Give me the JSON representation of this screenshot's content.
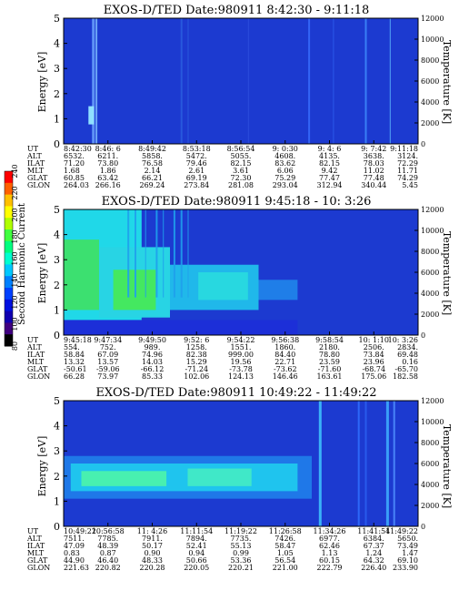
{
  "colorbar": {
    "label": "Second Harmonic Current",
    "ticks": [
      "240",
      "220",
      "200",
      "180",
      "160",
      "140",
      "120",
      "100",
      "80"
    ]
  },
  "row_labels": [
    "UT",
    "ALT",
    "ILAT",
    "MLT",
    "GLAT",
    "GLON"
  ],
  "chart_data": [
    {
      "type": "heatmap",
      "title": "EXOS-D/TED   Date:980911  8:42:30 - 9:11:18",
      "ylabel": "Energy [eV]",
      "y2label": "Temperature [K]",
      "ylim": [
        0,
        5
      ],
      "y2lim": [
        0,
        12000
      ],
      "yticks": [
        "0",
        "1",
        "2",
        "3",
        "4",
        "5"
      ],
      "y2ticks": [
        "0",
        "2000",
        "4000",
        "6000",
        "8000",
        "10000",
        "12000"
      ],
      "ut": [
        "8:42:30",
        "8:46: 6",
        "8:49:42",
        "8:53:18",
        "8:56:54",
        "9: 0:30",
        "9: 4: 6",
        "9: 7:42",
        "9:11:18"
      ],
      "alt": [
        "6532.",
        "6211.",
        "5858.",
        "5472.",
        "5055.",
        "4608.",
        "4135.",
        "3638.",
        "3124."
      ],
      "ilat": [
        "71.20",
        "73.80",
        "76.58",
        "79.46",
        "82.15",
        "83.62",
        "82.15",
        "78.03",
        "72.29"
      ],
      "mlt": [
        "1.68",
        "1.86",
        "2.14",
        "2.61",
        "3.61",
        "6.06",
        "9.42",
        "11.02",
        "11.71"
      ],
      "glat": [
        "60.85",
        "63.42",
        "66.21",
        "69.19",
        "72.30",
        "75.29",
        "77.47",
        "77.48",
        "74.29"
      ],
      "glon": [
        "264.03",
        "266.16",
        "269.24",
        "273.84",
        "281.08",
        "293.04",
        "312.94",
        "340.44",
        "5.45"
      ]
    },
    {
      "type": "heatmap",
      "title": "EXOS-D/TED   Date:980911  9:45:18 - 10: 3:26",
      "ylabel": "Energy [eV]",
      "y2label": "Temperature [K]",
      "ylim": [
        0,
        5
      ],
      "y2lim": [
        0,
        12000
      ],
      "yticks": [
        "0",
        "1",
        "2",
        "3",
        "4",
        "5"
      ],
      "y2ticks": [
        "0",
        "2000",
        "4000",
        "6000",
        "8000",
        "10000",
        "12000"
      ],
      "ut": [
        "9:45:18",
        "9:47:34",
        "9:49:50",
        "9:52: 6",
        "9:54:22",
        "9:56:38",
        "9:58:54",
        "10: 1:10",
        "10: 3:26"
      ],
      "alt": [
        "554.",
        "752.",
        "989.",
        "1258.",
        "1551.",
        "1860.",
        "2180.",
        "2506.",
        "2834."
      ],
      "ilat": [
        "58.84",
        "67.09",
        "74.96",
        "82.38",
        "999.00",
        "84.40",
        "78.80",
        "73.84",
        "69.48"
      ],
      "mlt": [
        "13.32",
        "13.57",
        "14.03",
        "15.29",
        "19.56",
        "22.71",
        "23.59",
        "23.96",
        "0.16"
      ],
      "glat": [
        "-50.61",
        "-59.06",
        "-66.12",
        "-71.24",
        "-73.78",
        "-73.62",
        "-71.60",
        "-68.74",
        "-65.70"
      ],
      "glon": [
        "66.28",
        "73.97",
        "85.33",
        "102.06",
        "124.13",
        "146.46",
        "163.61",
        "175.06",
        "182.58"
      ]
    },
    {
      "type": "heatmap",
      "title": "EXOS-D/TED   Date:980911  10:49:22 - 11:49:22",
      "ylabel": "Energy [eV]",
      "y2label": "Temperature [K]",
      "ylim": [
        0,
        5
      ],
      "y2lim": [
        0,
        12000
      ],
      "yticks": [
        "0",
        "1",
        "2",
        "3",
        "4",
        "5"
      ],
      "y2ticks": [
        "0",
        "2000",
        "4000",
        "6000",
        "8000",
        "10000",
        "12000"
      ],
      "ut": [
        "10:49:22",
        "10:56:58",
        "11: 4:26",
        "11:11:54",
        "11:19:22",
        "11:26:58",
        "11:34:26",
        "11:41:54",
        "11:49:22"
      ],
      "alt": [
        "7511.",
        "7785.",
        "7911.",
        "7894.",
        "7735.",
        "7426.",
        "6977.",
        "6384.",
        "5650."
      ],
      "ilat": [
        "47.09",
        "48.39",
        "50.17",
        "52.41",
        "55.13",
        "58.47",
        "62.46",
        "67.37",
        "73.49"
      ],
      "mlt": [
        "0.83",
        "0.87",
        "0.90",
        "0.94",
        "0.99",
        "1.05",
        "1.13",
        "1.24",
        "1.47"
      ],
      "glat": [
        "44.90",
        "46.40",
        "48.33",
        "50.66",
        "53.36",
        "56.54",
        "60.15",
        "64.32",
        "69.10"
      ],
      "glon": [
        "221.63",
        "220.82",
        "220.28",
        "220.05",
        "220.21",
        "221.00",
        "222.79",
        "226.40",
        "233.90"
      ]
    }
  ]
}
